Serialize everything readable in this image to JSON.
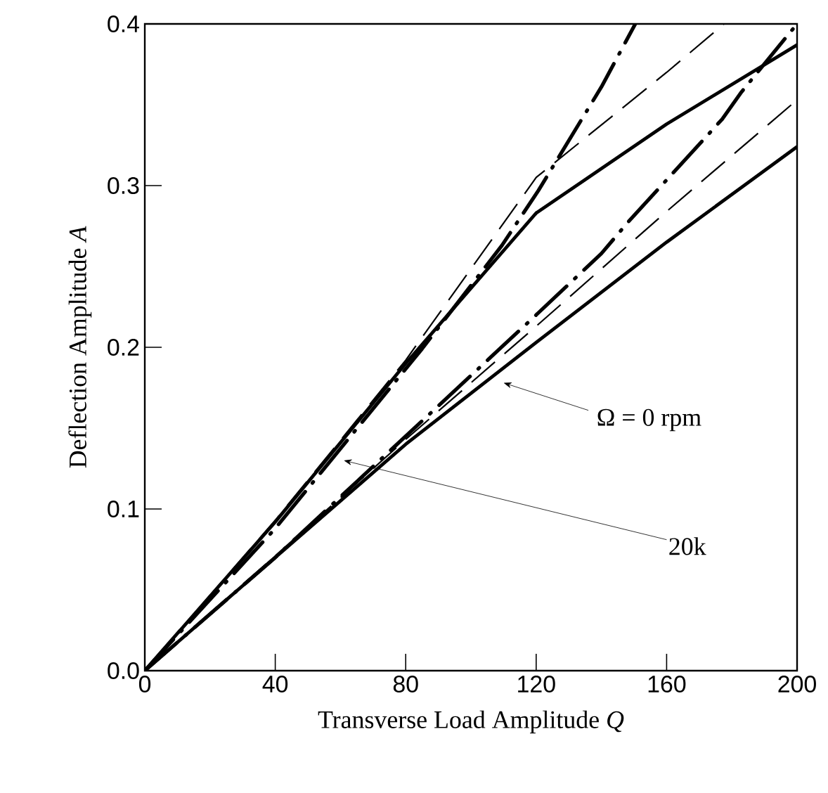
{
  "chart_data": {
    "type": "line",
    "xlabel": "Transverse Load Amplitude  *Q*",
    "ylabel": "Deflection Amplitude  *A*",
    "xlim": [
      0,
      200
    ],
    "ylim": [
      0,
      0.4
    ],
    "xticks": [
      0,
      40,
      80,
      120,
      160,
      200
    ],
    "yticks": [
      {
        "value": 0,
        "label": "0.0"
      },
      {
        "value": 0.1,
        "label": "0.1"
      },
      {
        "value": 0.2,
        "label": "0.2"
      },
      {
        "value": 0.3,
        "label": "0.3"
      },
      {
        "value": 0.4,
        "label": "0.4"
      }
    ],
    "grid": false,
    "marker": "none",
    "series": [
      {
        "color": "#000000",
        "line_style": "solid",
        "x": [
          0,
          40,
          80,
          120,
          160,
          200
        ],
        "values": [
          0,
          0.07,
          0.14,
          0.203,
          0.265,
          0.324
        ]
      },
      {
        "color": "#000000",
        "line_style": "dashed",
        "x": [
          0,
          40,
          80,
          120,
          160,
          200
        ],
        "values": [
          0,
          0.071,
          0.143,
          0.213,
          0.284,
          0.353
        ]
      },
      {
        "color": "#000000",
        "line_style": "dashdot",
        "x": [
          0,
          40,
          80,
          120,
          140,
          148,
          177,
          183,
          200
        ],
        "values": [
          0,
          0.07,
          0.145,
          0.22,
          0.258,
          0.277,
          0.341,
          0.358,
          0.4
        ]
      },
      {
        "color": "#000000",
        "line_style": "solid",
        "x": [
          0,
          40,
          80,
          120,
          160,
          200
        ],
        "values": [
          0,
          0.092,
          0.19,
          0.283,
          0.338,
          0.387
        ]
      },
      {
        "color": "#000000",
        "line_style": "dashed",
        "x": [
          0,
          40,
          80,
          120,
          160,
          177.6
        ],
        "values": [
          0,
          0.093,
          0.192,
          0.305,
          0.37,
          0.4
        ]
      },
      {
        "color": "#000000",
        "line_style": "dashdot",
        "x": [
          0,
          40,
          85,
          109.5,
          120.7,
          140,
          150.4
        ],
        "values": [
          0,
          0.088,
          0.199,
          0.263,
          0.297,
          0.361,
          0.4
        ]
      }
    ],
    "annotations": [
      "Ω = 0 rpm",
      "20k"
    ]
  }
}
